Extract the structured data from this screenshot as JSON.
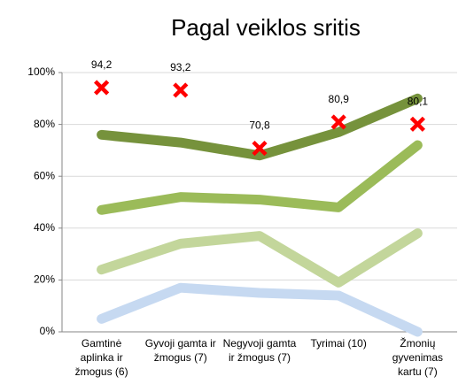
{
  "chart_data": {
    "type": "line",
    "title": "Pagal veiklos sritis",
    "categories": [
      "Gamtinė aplinka ir žmogus (6)",
      "Gyvoji gamta ir žmogus (7)",
      "Negyvoji gamta ir žmogus (7)",
      "Tyrimai (10)",
      "Žmonių gyvenimas kartu (7)"
    ],
    "series": [
      {
        "color": "#c6d9f1",
        "values": [
          5,
          17,
          15,
          14,
          0
        ]
      },
      {
        "color": "#c3d69b",
        "values": [
          24,
          34,
          37,
          19,
          38
        ]
      },
      {
        "color": "#9bbb59",
        "values": [
          47,
          52,
          51,
          48,
          72
        ]
      },
      {
        "color": "#76923c",
        "values": [
          76,
          73,
          68,
          77,
          90
        ]
      }
    ],
    "markers": {
      "color": "#ff0000",
      "values": [
        94.2,
        93.2,
        70.8,
        80.9,
        80.1
      ],
      "value_labels": [
        "94,2",
        "93,2",
        "70,8",
        "80,9",
        "80,1"
      ]
    },
    "ylim": [
      0,
      100
    ],
    "yticks": [
      {
        "value": 0,
        "label": "0%"
      },
      {
        "value": 20,
        "label": "20%"
      },
      {
        "value": 40,
        "label": "40%"
      },
      {
        "value": 60,
        "label": "60%"
      },
      {
        "value": 80,
        "label": "80%"
      },
      {
        "value": 100,
        "label": "100%"
      }
    ],
    "grid": true
  }
}
